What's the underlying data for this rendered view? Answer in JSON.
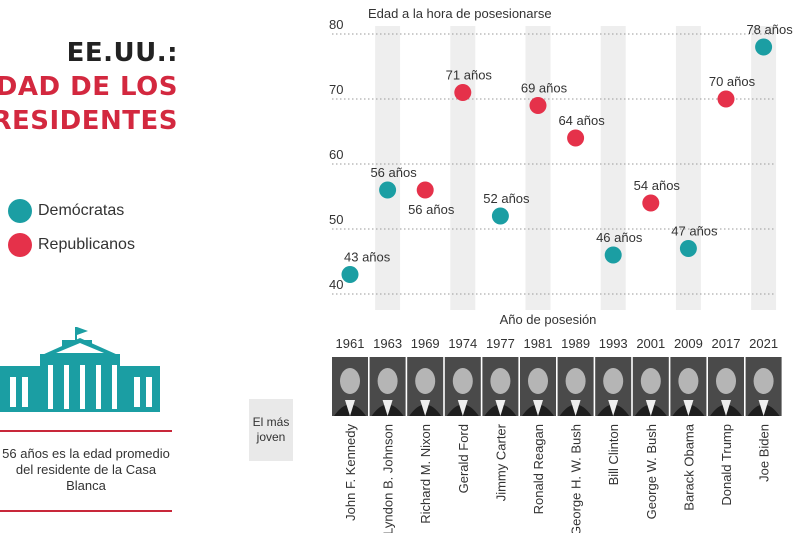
{
  "title": {
    "line1": "EE.UU.:",
    "line2": "EDAD DE LOS",
    "line3": "PRESIDENTES"
  },
  "legend": [
    {
      "label": "Demócratas",
      "color": "#1b9ea3"
    },
    {
      "label": "Republicanos",
      "color": "#e5314a"
    }
  ],
  "note": "56 años es la edad promedio del residente de la Casa Blanca",
  "callout": "El más joven",
  "colors": {
    "democrat": "#1b9ea3",
    "republican": "#e5314a",
    "band": "#eeeeee",
    "rule": "#c8283a",
    "house": "#1b9ea3"
  },
  "chart_data": {
    "type": "scatter",
    "ylabel": "Edad a la hora de posesionarse",
    "xlabel": "Año de posesión",
    "ylim": [
      40,
      80
    ],
    "yticks": [
      40,
      50,
      60,
      70,
      80
    ],
    "grid": true,
    "categories": [
      "1961",
      "1963",
      "1969",
      "1974",
      "1977",
      "1981",
      "1989",
      "1993",
      "2001",
      "2009",
      "2017",
      "2021"
    ],
    "presidents": [
      "John F. Kennedy",
      "Lyndon B. Johnson",
      "Richard M. Nixon",
      "Gerald Ford",
      "Jimmy Carter",
      "Ronald Reagan",
      "George H. W. Bush",
      "Bill Clinton",
      "George W. Bush",
      "Barack Obama",
      "Donald Trump",
      "Joe Biden"
    ],
    "party": [
      "D",
      "D",
      "R",
      "R",
      "D",
      "R",
      "R",
      "D",
      "R",
      "D",
      "R",
      "D"
    ],
    "values": [
      43,
      56,
      56,
      71,
      52,
      69,
      64,
      46,
      54,
      47,
      70,
      78
    ],
    "labels": [
      "43 años",
      "56 años",
      "56 años",
      "71 años",
      "52 años",
      "69 años",
      "64 años",
      "46 años",
      "54 años",
      "47 años",
      "70 años",
      "78 años"
    ]
  }
}
